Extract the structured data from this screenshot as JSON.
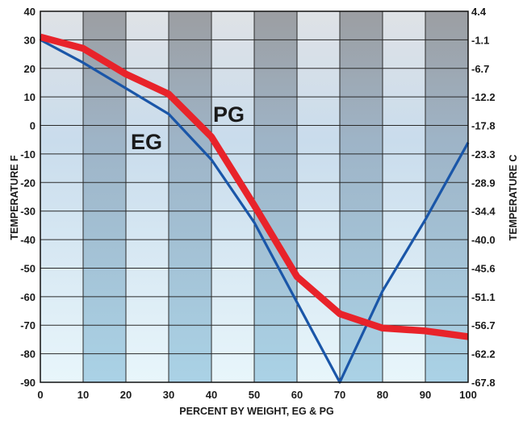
{
  "chart_data": {
    "type": "line",
    "xlabel": "PERCENT BY WEIGHT, EG & PG",
    "ylabel_left": "TEMPERATURE F",
    "ylabel_right": "TEMPERATURE C",
    "xlim": [
      0,
      100
    ],
    "ylim": [
      -90,
      40
    ],
    "x_ticks": [
      "0",
      "10",
      "20",
      "30",
      "40",
      "50",
      "60",
      "70",
      "80",
      "90",
      "100"
    ],
    "y_ticks_left": [
      "40",
      "30",
      "20",
      "10",
      "0",
      "-10",
      "-20",
      "-30",
      "-40",
      "-50",
      "-60",
      "-70",
      "-80",
      "-90"
    ],
    "y_ticks_right": [
      "4.4",
      "-1.1",
      "-6.7",
      "-12.2",
      "-17.8",
      "-23.3",
      "-28.9",
      "-34.4",
      "-40.0",
      "-45.6",
      "-51.1",
      "-56.7",
      "-62.2",
      "-67.8"
    ],
    "grid": true,
    "series": [
      {
        "name": "EG",
        "color": "#1a56a8",
        "x": [
          0,
          10,
          20,
          30,
          40,
          50,
          60,
          70,
          80,
          90,
          100
        ],
        "y": [
          30,
          22,
          13,
          4,
          -12,
          -34,
          -62,
          -90,
          -58,
          -33,
          -6
        ]
      },
      {
        "name": "PG",
        "color": "#e8232a",
        "x": [
          0,
          10,
          20,
          30,
          40,
          50,
          60,
          70,
          80,
          90,
          100
        ],
        "y": [
          31,
          27,
          18,
          11,
          -4,
          -28,
          -53,
          -66,
          -71,
          -72,
          -74
        ]
      }
    ]
  }
}
